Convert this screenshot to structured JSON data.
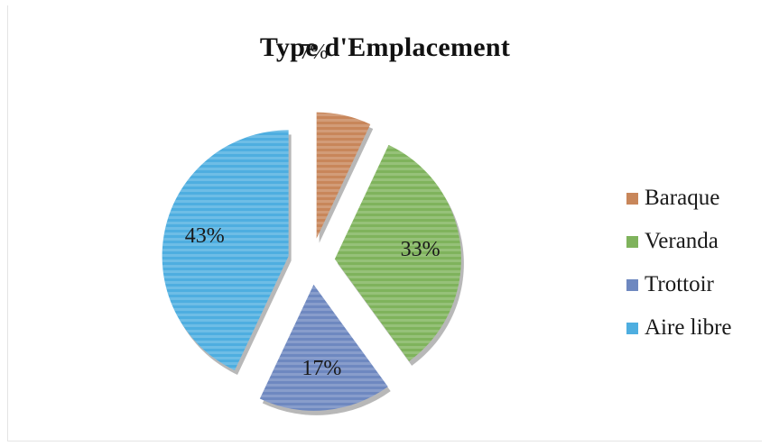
{
  "chart_data": {
    "type": "pie",
    "title": "Type d'Emplacement",
    "categories": [
      "Baraque",
      "Veranda",
      "Trottoir",
      "Aire libre"
    ],
    "values": [
      7,
      33,
      17,
      43
    ],
    "labels": [
      "7%",
      "33%",
      "17%",
      "43%"
    ],
    "colors": [
      "#c8865a",
      "#7fb35c",
      "#6e88c0",
      "#4eaee0"
    ],
    "exploded": true,
    "legend_position": "right"
  }
}
